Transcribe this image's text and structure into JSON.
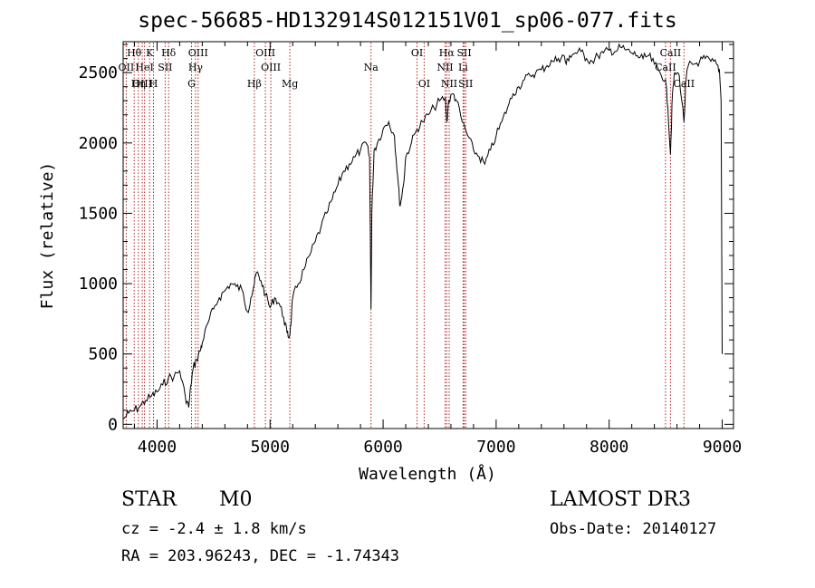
{
  "header": {
    "title": "spec-56685-HD132914S012151V01_sp06-077.fits"
  },
  "info": {
    "class": "STAR",
    "subclass": "M0",
    "survey": "LAMOST DR3",
    "cz": "cz = -2.4 ± 1.8 km/s",
    "obs_date": "Obs-Date: 20140127",
    "radec": "RA = 203.96243, DEC =  -1.74343"
  },
  "chart_data": {
    "type": "line",
    "title": "spec-56685-HD132914S012151V01_sp06-077.fits",
    "xlabel": "Wavelength (Å)",
    "ylabel": "Flux (relative)",
    "xlim": [
      3700,
      9100
    ],
    "ylim": [
      -30,
      2720
    ],
    "x_ticks": [
      4000,
      5000,
      6000,
      7000,
      8000,
      9000
    ],
    "y_ticks": [
      0,
      500,
      1000,
      1500,
      2000,
      2500
    ],
    "grid": false,
    "line_color": "#000000",
    "marker_color": "#b22222",
    "series": [
      {
        "x": [
          3705,
          3750,
          3800,
          3850,
          3900,
          3950,
          4000,
          4050,
          4100,
          4150,
          4200,
          4250,
          4280,
          4300,
          4320,
          4350,
          4380,
          4400,
          4450,
          4500,
          4550,
          4600,
          4650,
          4700,
          4750,
          4800,
          4830,
          4861,
          4880,
          4920,
          4960,
          5000,
          5040,
          5080,
          5120,
          5150,
          5170,
          5183,
          5200,
          5250,
          5300,
          5350,
          5400,
          5450,
          5500,
          5550,
          5600,
          5650,
          5700,
          5750,
          5800,
          5850,
          5880,
          5893,
          5900,
          5920,
          5950,
          6000,
          6050,
          6100,
          6130,
          6150,
          6180,
          6200,
          6250,
          6300,
          6350,
          6400,
          6450,
          6500,
          6550,
          6563,
          6580,
          6620,
          6650,
          6700,
          6750,
          6800,
          6850,
          6900,
          6950,
          7000,
          7050,
          7100,
          7150,
          7200,
          7250,
          7300,
          7350,
          7400,
          7450,
          7500,
          7550,
          7600,
          7620,
          7650,
          7700,
          7750,
          7800,
          7850,
          7900,
          7950,
          8000,
          8050,
          8100,
          8150,
          8200,
          8250,
          8300,
          8350,
          8400,
          8450,
          8498,
          8520,
          8542,
          8560,
          8580,
          8620,
          8662,
          8680,
          8700,
          8750,
          8800,
          8850,
          8900,
          8950,
          8975,
          8990,
          9000
        ],
        "y": [
          40,
          80,
          100,
          130,
          170,
          200,
          230,
          280,
          330,
          340,
          380,
          200,
          120,
          280,
          400,
          460,
          520,
          580,
          720,
          820,
          900,
          950,
          1000,
          980,
          960,
          800,
          900,
          1000,
          1080,
          1020,
          920,
          830,
          900,
          860,
          760,
          650,
          620,
          700,
          900,
          1000,
          1100,
          1200,
          1300,
          1400,
          1500,
          1600,
          1700,
          1800,
          1850,
          1900,
          1950,
          2000,
          1900,
          820,
          1500,
          1950,
          2000,
          2100,
          2150,
          2050,
          1750,
          1550,
          1700,
          1900,
          2000,
          2100,
          2150,
          2200,
          2250,
          2300,
          2320,
          2150,
          2300,
          2350,
          2300,
          2150,
          2050,
          1950,
          1900,
          1850,
          1950,
          2050,
          2150,
          2250,
          2350,
          2400,
          2450,
          2480,
          2500,
          2520,
          2550,
          2580,
          2600,
          2620,
          2560,
          2620,
          2640,
          2650,
          2600,
          2580,
          2620,
          2640,
          2660,
          2650,
          2680,
          2660,
          2640,
          2620,
          2600,
          2620,
          2560,
          2500,
          2450,
          2250,
          1920,
          2350,
          2500,
          2480,
          2150,
          2450,
          2550,
          2560,
          2580,
          2600,
          2580,
          2560,
          2520,
          2300,
          500
        ]
      }
    ],
    "lines": [
      {
        "name": "Hθ",
        "wave": 3798,
        "row": 0
      },
      {
        "name": "K",
        "wave": 3934,
        "row": 0
      },
      {
        "name": "Hδ",
        "wave": 4102,
        "row": 0
      },
      {
        "name": "OIII",
        "wave": 4363,
        "row": 0
      },
      {
        "name": "OIII",
        "wave": 4959,
        "row": 0
      },
      {
        "name": "OI",
        "wave": 6300,
        "row": 0
      },
      {
        "name": "Hα",
        "wave": 6563,
        "row": 0
      },
      {
        "name": "SII",
        "wave": 6717,
        "row": 0
      },
      {
        "name": "CaII",
        "wave": 8542,
        "row": 0
      },
      {
        "name": "OII",
        "wave": 3727,
        "row": 1
      },
      {
        "name": "HeI",
        "wave": 3889,
        "row": 1
      },
      {
        "name": "SII",
        "wave": 4072,
        "row": 1
      },
      {
        "name": "Hγ",
        "wave": 4340,
        "row": 1
      },
      {
        "name": "OIII",
        "wave": 5007,
        "row": 1
      },
      {
        "name": "NII",
        "wave": 6548,
        "row": 1
      },
      {
        "name": "Li",
        "wave": 6708,
        "row": 1
      },
      {
        "name": "CaII",
        "wave": 8498,
        "row": 1
      },
      {
        "name": "OIII",
        "wave": 3869,
        "row": 2
      },
      {
        "name": "Hη",
        "wave": 3835,
        "row": 2
      },
      {
        "name": "H",
        "wave": 3968,
        "row": 2
      },
      {
        "name": "G",
        "wave": 4305,
        "row": 2
      },
      {
        "name": "Hβ",
        "wave": 4861,
        "row": 2
      },
      {
        "name": "Mg",
        "wave": 5175,
        "row": 2
      },
      {
        "name": "Na",
        "wave": 5893,
        "row": -1
      },
      {
        "name": "OI",
        "wave": 6363,
        "row": 2
      },
      {
        "name": "NII",
        "wave": 6584,
        "row": 2
      },
      {
        "name": "SII",
        "wave": 6731,
        "row": 2
      },
      {
        "name": "CaII",
        "wave": 8662,
        "row": 2
      }
    ]
  }
}
